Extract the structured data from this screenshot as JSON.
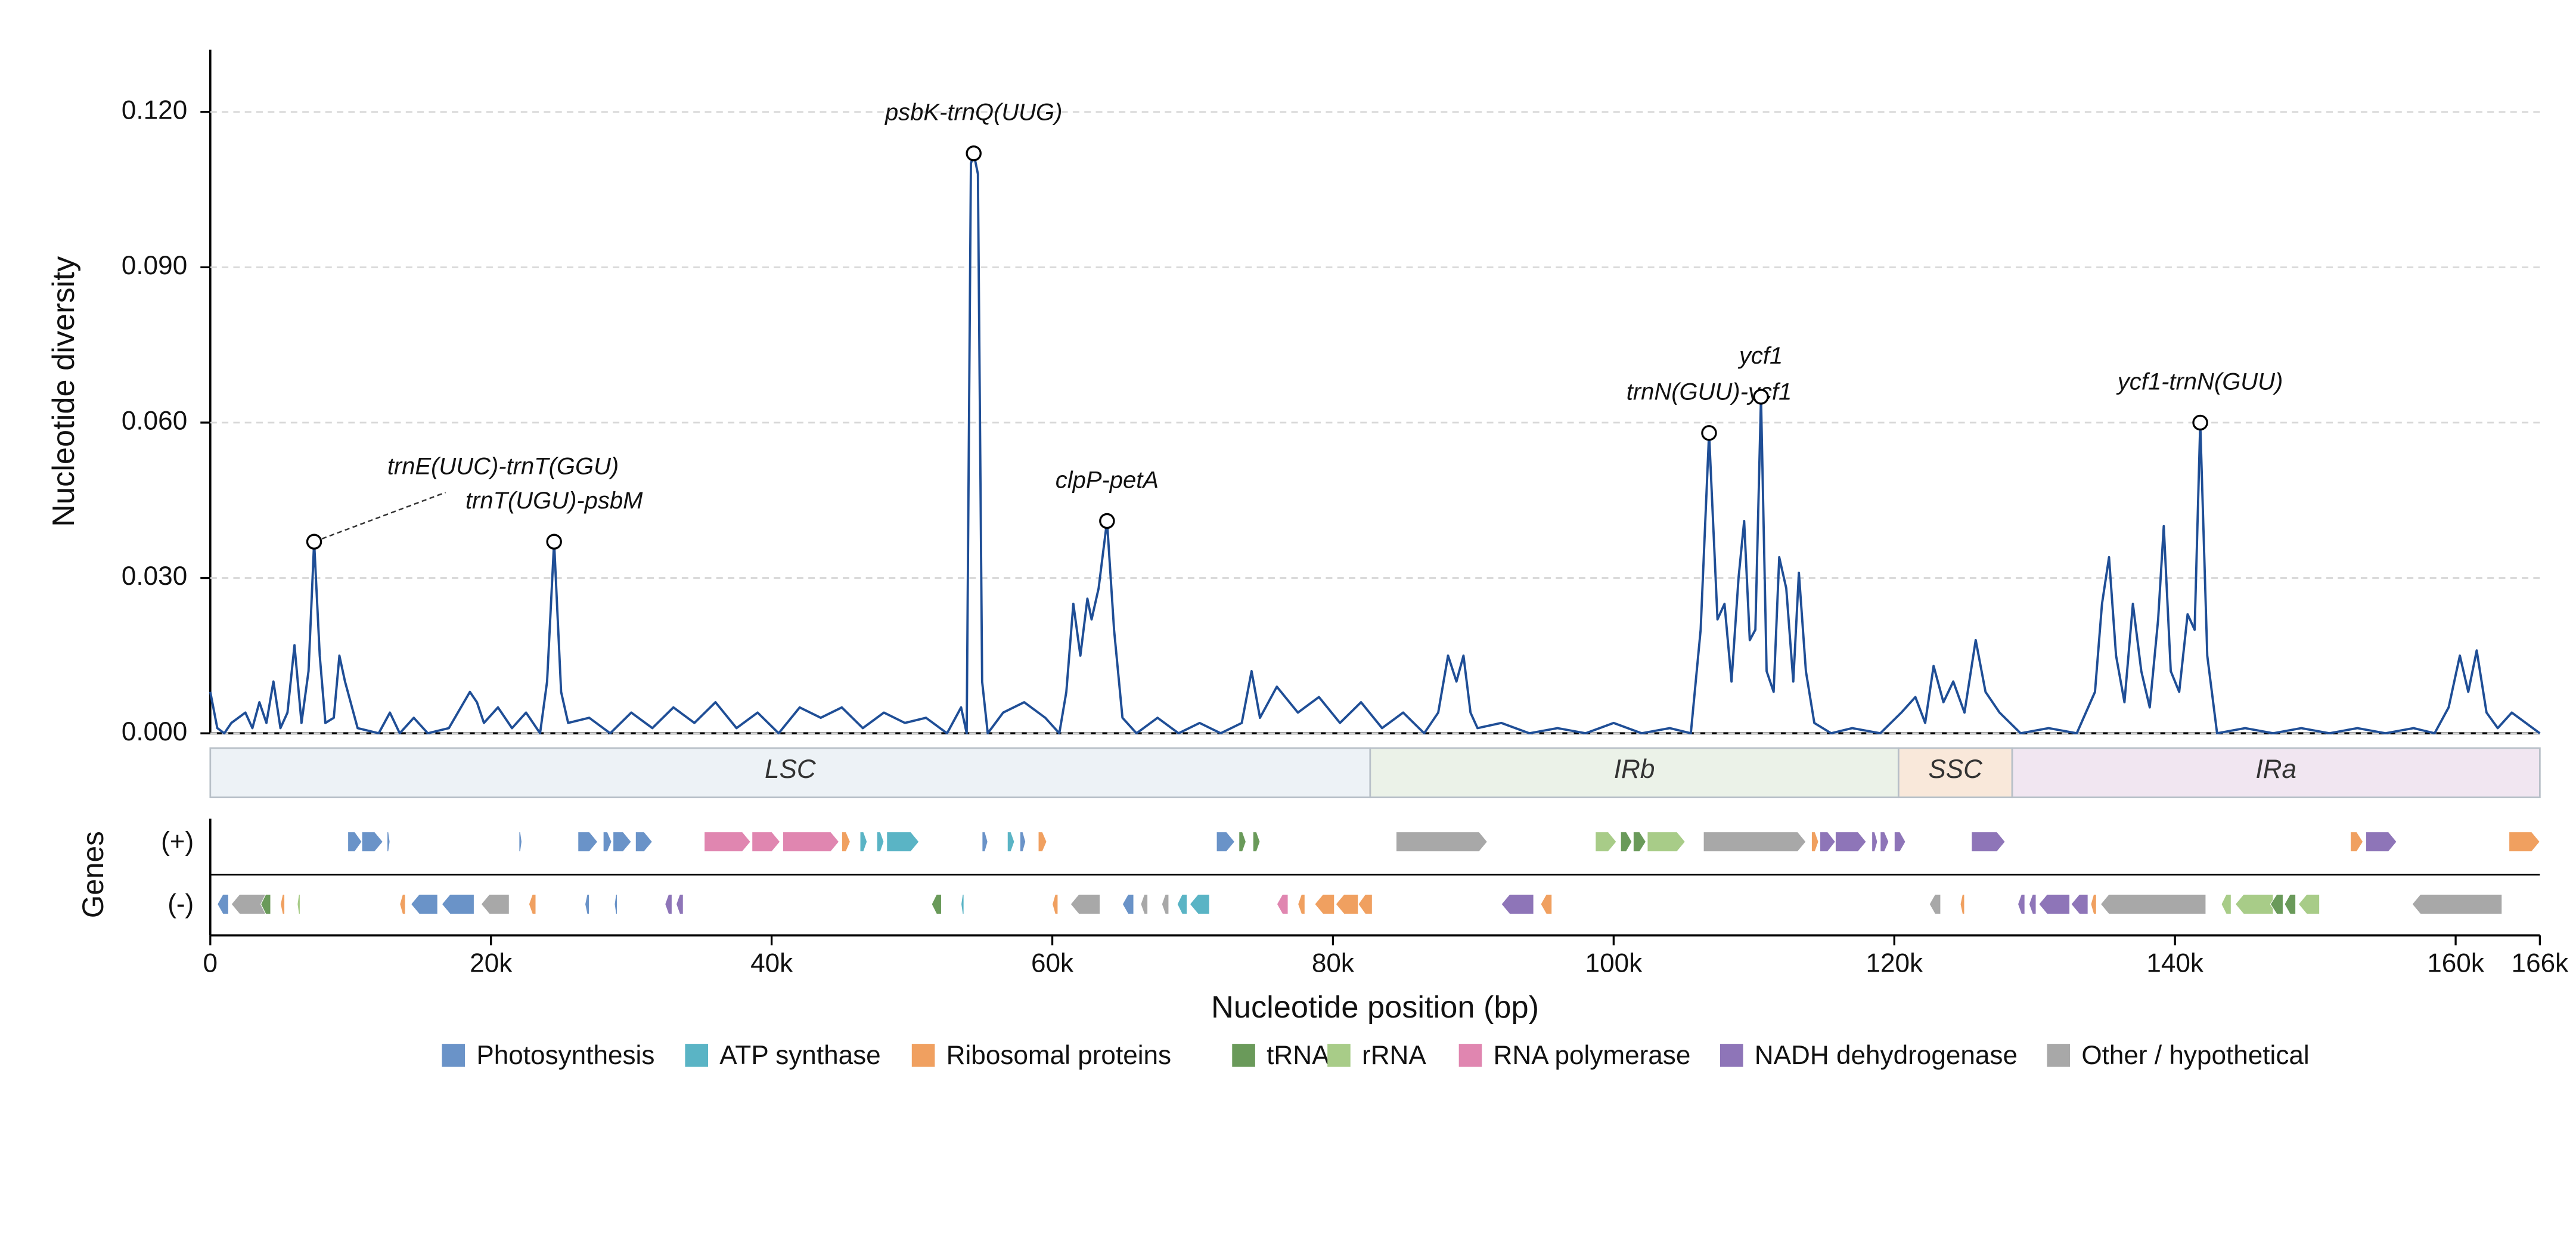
{
  "chart_data": {
    "type": "line",
    "ylabel": "Nucleotide diversity",
    "xlabel": "Nucleotide position (bp)",
    "genes_label": "Genes",
    "strand_labels": [
      "(+)",
      "(-)"
    ],
    "color": "#1f4e96",
    "grid": true,
    "xlim": [
      0,
      166000
    ],
    "ylim": [
      0,
      0.132
    ],
    "xticks": [
      0,
      {
        "value": 20000,
        "label": "20k"
      },
      {
        "value": 40000,
        "label": "40k"
      },
      {
        "value": 60000,
        "label": "60k"
      },
      {
        "value": 80000,
        "label": "80k"
      },
      {
        "value": 100000,
        "label": "100k"
      },
      {
        "value": 120000,
        "label": "120k"
      },
      {
        "value": 140000,
        "label": "140k"
      },
      {
        "value": 160000,
        "label": "160k"
      },
      {
        "value": 166000,
        "label": "166k"
      }
    ],
    "yticks": [
      {
        "value": 0,
        "label": "0.000"
      },
      {
        "value": 0.03,
        "label": "0.030"
      },
      {
        "value": 0.06,
        "label": "0.060"
      },
      {
        "value": 0.09,
        "label": "0.090"
      },
      {
        "value": 0.12,
        "label": "0.120"
      }
    ],
    "x": [
      0,
      500,
      1000,
      1500,
      2500,
      3000,
      3500,
      4000,
      4500,
      5000,
      5500,
      6000,
      6500,
      7000,
      7400,
      7800,
      8200,
      8800,
      9200,
      9600,
      10500,
      12000,
      12800,
      13500,
      14500,
      15500,
      17000,
      18500,
      19000,
      19500,
      20500,
      21500,
      22500,
      23500,
      24000,
      24500,
      25000,
      25500,
      27000,
      28500,
      30000,
      31500,
      33000,
      34500,
      36000,
      37500,
      39000,
      40500,
      42000,
      43500,
      45000,
      46500,
      48000,
      49500,
      51000,
      52500,
      53500,
      53900,
      54200,
      54400,
      54700,
      55000,
      55400,
      56500,
      58000,
      59500,
      60500,
      61000,
      61500,
      62000,
      62500,
      62800,
      63300,
      63900,
      64400,
      65000,
      66000,
      67500,
      69000,
      70500,
      72000,
      73500,
      74200,
      74800,
      76000,
      77500,
      79000,
      80500,
      82000,
      83500,
      85000,
      86500,
      87500,
      88200,
      88800,
      89300,
      89800,
      90300,
      92000,
      94000,
      96000,
      98000,
      100000,
      102000,
      104000,
      105500,
      106200,
      106800,
      107400,
      107900,
      108400,
      108900,
      109300,
      109700,
      110100,
      110500,
      110900,
      111400,
      111800,
      112300,
      112800,
      113200,
      113700,
      114300,
      115500,
      117000,
      119000,
      120500,
      121500,
      122200,
      122800,
      123500,
      124200,
      125000,
      125800,
      126500,
      127500,
      129000,
      131000,
      133000,
      134300,
      134800,
      135300,
      135800,
      136400,
      137000,
      137600,
      138200,
      138800,
      139200,
      139700,
      140300,
      140900,
      141400,
      141800,
      142300,
      143000,
      145000,
      147000,
      149000,
      151000,
      153000,
      155000,
      157000,
      158500,
      159500,
      160300,
      160900,
      161500,
      162200,
      163000,
      164000,
      165000,
      166000
    ],
    "values": [
      0.008,
      0.001,
      0.0,
      0.002,
      0.004,
      0.001,
      0.006,
      0.002,
      0.01,
      0.001,
      0.004,
      0.017,
      0.002,
      0.012,
      0.037,
      0.015,
      0.002,
      0.003,
      0.015,
      0.01,
      0.001,
      0.0,
      0.004,
      0.0,
      0.003,
      0.0,
      0.001,
      0.008,
      0.006,
      0.002,
      0.005,
      0.001,
      0.004,
      0.0,
      0.01,
      0.037,
      0.008,
      0.002,
      0.003,
      0.0,
      0.004,
      0.001,
      0.005,
      0.002,
      0.006,
      0.001,
      0.004,
      0.0,
      0.005,
      0.003,
      0.005,
      0.001,
      0.004,
      0.002,
      0.003,
      0.0,
      0.005,
      0.0,
      0.11,
      0.112,
      0.108,
      0.01,
      0.0,
      0.004,
      0.006,
      0.003,
      0.0,
      0.008,
      0.025,
      0.015,
      0.026,
      0.022,
      0.028,
      0.041,
      0.02,
      0.003,
      0.0,
      0.003,
      0.0,
      0.002,
      0.0,
      0.002,
      0.012,
      0.003,
      0.009,
      0.004,
      0.007,
      0.002,
      0.006,
      0.001,
      0.004,
      0.0,
      0.004,
      0.015,
      0.01,
      0.015,
      0.004,
      0.001,
      0.002,
      0.0,
      0.001,
      0.0,
      0.002,
      0.0,
      0.001,
      0.0,
      0.02,
      0.058,
      0.022,
      0.025,
      0.01,
      0.03,
      0.041,
      0.018,
      0.02,
      0.065,
      0.012,
      0.008,
      0.034,
      0.028,
      0.01,
      0.031,
      0.012,
      0.002,
      0.0,
      0.001,
      0.0,
      0.004,
      0.007,
      0.002,
      0.013,
      0.006,
      0.01,
      0.004,
      0.018,
      0.008,
      0.004,
      0.0,
      0.001,
      0.0,
      0.008,
      0.025,
      0.034,
      0.015,
      0.006,
      0.025,
      0.012,
      0.005,
      0.022,
      0.04,
      0.012,
      0.008,
      0.023,
      0.02,
      0.06,
      0.015,
      0.0,
      0.001,
      0.0,
      0.001,
      0.0,
      0.001,
      0.0,
      0.001,
      0.0,
      0.005,
      0.015,
      0.008,
      0.016,
      0.004,
      0.001,
      0.004,
      0.002,
      0.0
    ],
    "annotations": [
      {
        "label": "trnE(UUC)-trnT(GGU)",
        "x": 7400,
        "y": 0.037
      },
      {
        "label": "trnT(UGU)-psbM",
        "x": 24500,
        "y": 0.037
      },
      {
        "label": "psbK-trnQ(UUG)",
        "x": 54400,
        "y": 0.112
      },
      {
        "label": "clpP-petA",
        "x": 63900,
        "y": 0.041
      },
      {
        "label": "trnN(GUU)-ycf1",
        "x": 106800,
        "y": 0.058
      },
      {
        "label": "ycf1",
        "x": 110500,
        "y": 0.065
      },
      {
        "label": "ycf1-trnN(GUU)",
        "x": 141800,
        "y": 0.06
      }
    ],
    "regions": [
      {
        "name": "LSC",
        "start": 0,
        "end": 82650,
        "color": "#edf2f6"
      },
      {
        "name": "IRb",
        "start": 82650,
        "end": 120300,
        "color": "#ebf2e8"
      },
      {
        "name": "SSC",
        "start": 120300,
        "end": 128400,
        "color": "#f9e8da"
      },
      {
        "name": "IRa",
        "start": 128400,
        "end": 166000,
        "color": "#f1e6f1"
      }
    ],
    "gene_categories": [
      {
        "name": "Photosynthesis",
        "color": "#6a93c8"
      },
      {
        "name": "ATP synthase",
        "color": "#5ab4c5"
      },
      {
        "name": "Ribosomal proteins",
        "color": "#f0a060"
      },
      {
        "name": "tRNA",
        "color": "#6a9a5a"
      },
      {
        "name": "rRNA",
        "color": "#a8cc88"
      },
      {
        "name": "RNA polymerase",
        "color": "#e086b0"
      },
      {
        "name": "NADH dehydrogenase",
        "color": "#8e75b8"
      },
      {
        "name": "Other / hypothetical",
        "color": "#a8a8a8"
      }
    ],
    "genes": [
      [
        9800,
        10800,
        0,
        0
      ],
      [
        10800,
        12300,
        0,
        0
      ],
      [
        12600,
        12800,
        0,
        0
      ],
      [
        22000,
        22200,
        0,
        0
      ],
      [
        26200,
        27600,
        0,
        0
      ],
      [
        28000,
        28600,
        0,
        0
      ],
      [
        28700,
        30000,
        0,
        0
      ],
      [
        30300,
        31500,
        0,
        0
      ],
      [
        35200,
        38500,
        0,
        5
      ],
      [
        38600,
        40600,
        0,
        5
      ],
      [
        40800,
        44800,
        0,
        5
      ],
      [
        45000,
        45600,
        0,
        2
      ],
      [
        46300,
        46800,
        0,
        1
      ],
      [
        47500,
        48000,
        0,
        1
      ],
      [
        48200,
        50500,
        0,
        1
      ],
      [
        55000,
        55400,
        0,
        0
      ],
      [
        56800,
        57300,
        0,
        1
      ],
      [
        57700,
        58100,
        0,
        0
      ],
      [
        59000,
        59600,
        0,
        2
      ],
      [
        71700,
        73000,
        0,
        0
      ],
      [
        73300,
        73800,
        0,
        3
      ],
      [
        74300,
        74800,
        0,
        3
      ],
      [
        84500,
        91000,
        0,
        7
      ],
      [
        98700,
        100200,
        0,
        4
      ],
      [
        100500,
        101300,
        0,
        3
      ],
      [
        101400,
        102300,
        0,
        3
      ],
      [
        102400,
        105100,
        0,
        4
      ],
      [
        106400,
        113700,
        0,
        7
      ],
      [
        114100,
        114600,
        0,
        2
      ],
      [
        114700,
        115800,
        0,
        6
      ],
      [
        115800,
        118000,
        0,
        6
      ],
      [
        118400,
        118800,
        0,
        6
      ],
      [
        119000,
        119600,
        0,
        6
      ],
      [
        120000,
        120800,
        0,
        6
      ],
      [
        125500,
        127900,
        0,
        6
      ],
      [
        152500,
        153400,
        0,
        2
      ],
      [
        153600,
        155800,
        0,
        6
      ],
      [
        163800,
        166000,
        0,
        2
      ],
      [
        500,
        1300,
        1,
        0
      ],
      [
        1500,
        4200,
        1,
        7
      ],
      [
        3600,
        4300,
        1,
        3
      ],
      [
        5000,
        5300,
        1,
        2
      ],
      [
        6200,
        6400,
        1,
        4
      ],
      [
        13500,
        13900,
        1,
        2
      ],
      [
        14300,
        16200,
        1,
        0
      ],
      [
        16500,
        18800,
        1,
        0
      ],
      [
        19300,
        21300,
        1,
        7
      ],
      [
        22700,
        23200,
        1,
        2
      ],
      [
        26700,
        27000,
        1,
        0
      ],
      [
        28800,
        29000,
        1,
        0
      ],
      [
        32400,
        32900,
        1,
        6
      ],
      [
        33200,
        33700,
        1,
        6
      ],
      [
        51400,
        52100,
        1,
        3
      ],
      [
        53500,
        53700,
        1,
        1
      ],
      [
        60000,
        60400,
        1,
        2
      ],
      [
        61300,
        63400,
        1,
        7
      ],
      [
        65000,
        65800,
        1,
        0
      ],
      [
        66300,
        66800,
        1,
        7
      ],
      [
        67800,
        68300,
        1,
        7
      ],
      [
        68900,
        69600,
        1,
        1
      ],
      [
        69800,
        71200,
        1,
        1
      ],
      [
        76000,
        76800,
        1,
        5
      ],
      [
        77500,
        78000,
        1,
        2
      ],
      [
        78700,
        80100,
        1,
        2
      ],
      [
        80200,
        81800,
        1,
        2
      ],
      [
        81800,
        82800,
        1,
        2
      ],
      [
        92000,
        94300,
        1,
        6
      ],
      [
        94800,
        95600,
        1,
        2
      ],
      [
        122500,
        123300,
        1,
        7
      ],
      [
        124700,
        125000,
        1,
        2
      ],
      [
        128800,
        129300,
        1,
        6
      ],
      [
        129600,
        130100,
        1,
        6
      ],
      [
        130300,
        132500,
        1,
        6
      ],
      [
        132600,
        133800,
        1,
        6
      ],
      [
        134000,
        134400,
        1,
        2
      ],
      [
        134700,
        142200,
        1,
        7
      ],
      [
        143300,
        144000,
        1,
        4
      ],
      [
        144300,
        147000,
        1,
        4
      ],
      [
        146800,
        147700,
        1,
        3
      ],
      [
        147800,
        148600,
        1,
        3
      ],
      [
        148800,
        150300,
        1,
        4
      ],
      [
        156900,
        163300,
        1,
        7
      ]
    ]
  }
}
